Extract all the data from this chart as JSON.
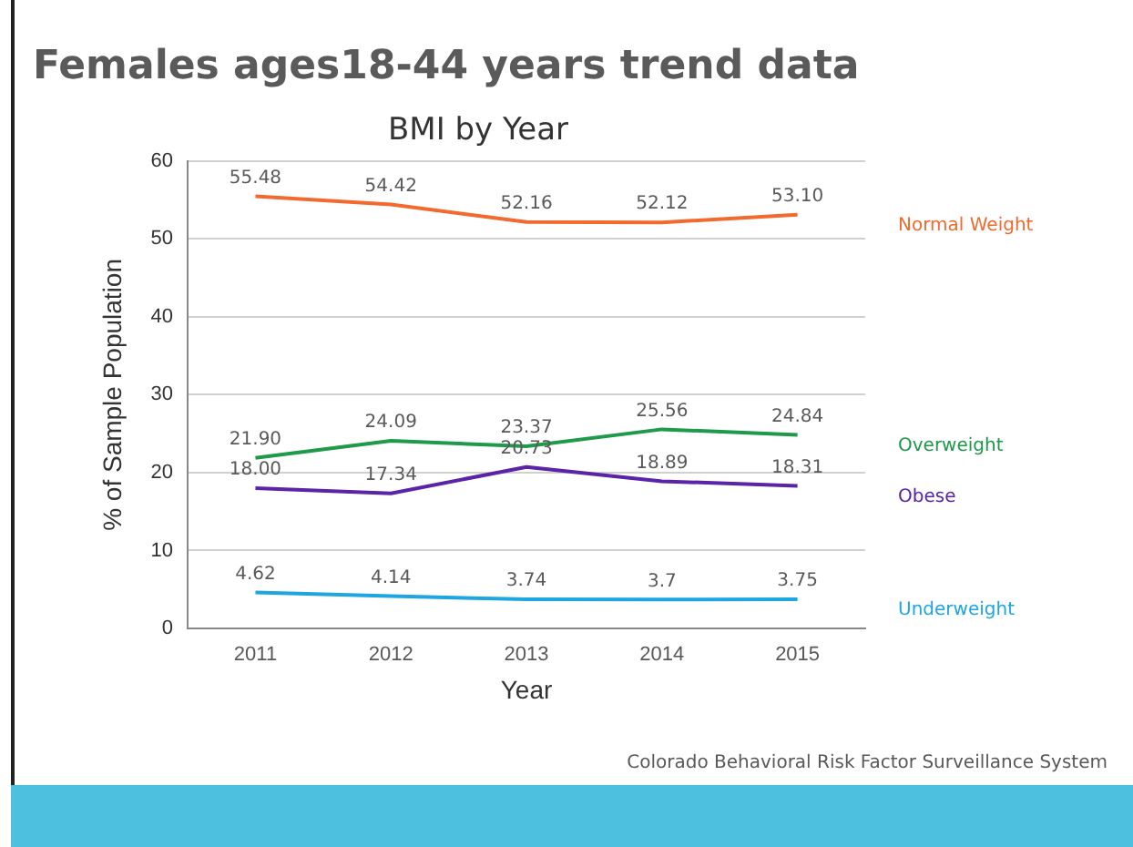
{
  "chart_data": {
    "type": "line",
    "title": "Females ages18-44 years trend data",
    "subtitle": "BMI by Year",
    "xlabel": "Year",
    "ylabel": "% of Sample Population",
    "categories": [
      "2011",
      "2012",
      "2013",
      "2014",
      "2015"
    ],
    "series": [
      {
        "name": "Normal Weight",
        "color": "#f26a2e",
        "values": [
          55.48,
          54.42,
          52.16,
          52.12,
          53.1
        ],
        "value_labels": [
          "55.48",
          "54.42",
          "52.16",
          "52.12",
          "53.10"
        ]
      },
      {
        "name": "Overweight",
        "color": "#1e9a4a",
        "values": [
          21.9,
          24.09,
          23.37,
          25.56,
          24.84
        ],
        "value_labels": [
          "21.90",
          "24.09",
          "23.37",
          "25.56",
          "24.84"
        ]
      },
      {
        "name": "Obese",
        "color": "#5a23a8",
        "values": [
          18.0,
          17.34,
          20.73,
          18.89,
          18.31
        ],
        "value_labels": [
          "18.00",
          "17.34",
          "20.73",
          "18.89",
          "18.31"
        ]
      },
      {
        "name": "Underweight",
        "color": "#1ea6e0",
        "values": [
          4.62,
          4.14,
          3.74,
          3.7,
          3.75
        ],
        "value_labels": [
          "4.62",
          "4.14",
          "3.74",
          "3.7",
          "3.75"
        ]
      }
    ],
    "ylim": [
      0,
      60
    ],
    "yticks": [
      0,
      10,
      20,
      30,
      40,
      50,
      60
    ],
    "grid": "y",
    "legend": false,
    "marker": "none",
    "line_style": "solid",
    "annotations": [
      "Colorado Behavioral Risk Factor Surveillance System"
    ]
  }
}
